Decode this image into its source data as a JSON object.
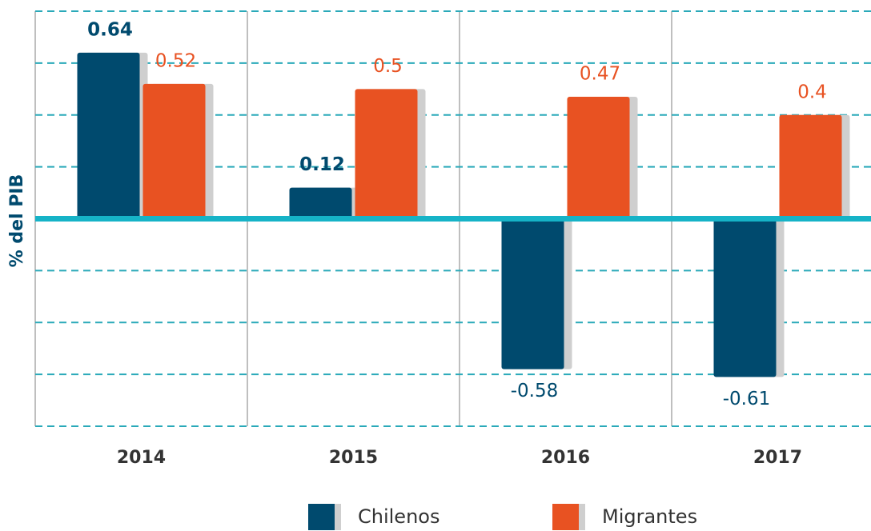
{
  "chart_data": {
    "type": "bar",
    "y_label": "% del PIB",
    "categories": [
      "2014",
      "2015",
      "2016",
      "2017"
    ],
    "series": [
      {
        "name": "Chilenos",
        "color": "#004a6e",
        "values": [
          0.64,
          0.12,
          -0.58,
          -0.61
        ]
      },
      {
        "name": "Migrantes",
        "color": "#e85222",
        "values": [
          0.52,
          0.5,
          0.47,
          0.4
        ]
      }
    ],
    "ylim": [
      -0.8,
      0.8
    ],
    "yticks": [
      -0.8,
      -0.6,
      -0.4,
      -0.2,
      0,
      0.2,
      0.4,
      0.6,
      0.8
    ],
    "grid": true
  }
}
